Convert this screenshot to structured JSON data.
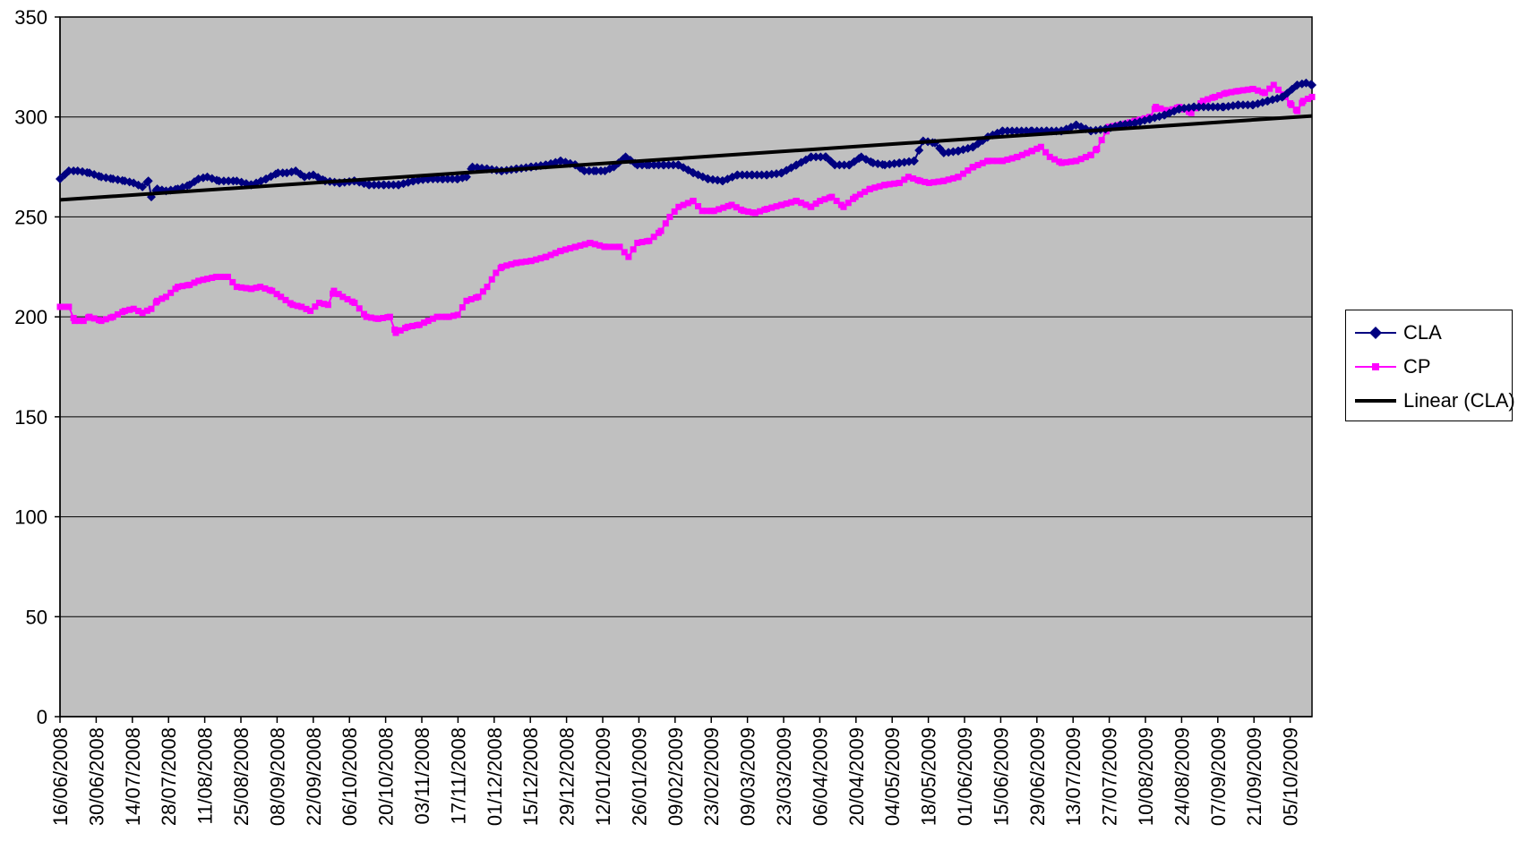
{
  "chart_data": {
    "type": "line",
    "title": "",
    "xlabel": "",
    "ylabel": "",
    "ylim": [
      0,
      350
    ],
    "yticks": [
      0,
      50,
      100,
      150,
      200,
      250,
      300,
      350
    ],
    "x_tick_labels": [
      "16/06/2008",
      "30/06/2008",
      "14/07/2008",
      "28/07/2008",
      "11/08/2008",
      "25/08/2008",
      "08/09/2008",
      "22/09/2008",
      "06/10/2008",
      "20/10/2008",
      "03/11/2008",
      "17/11/2008",
      "01/12/2008",
      "15/12/2008",
      "29/12/2008",
      "12/01/2009",
      "26/01/2009",
      "09/02/2009",
      "23/02/2009",
      "09/03/2009",
      "23/03/2009",
      "06/04/2009",
      "20/04/2009",
      "04/05/2009",
      "18/05/2009",
      "01/06/2009",
      "15/06/2009",
      "29/06/2009",
      "13/07/2009",
      "27/07/2009",
      "10/08/2009",
      "24/08/2009",
      "07/09/2009",
      "21/09/2009",
      "05/10/2009"
    ],
    "grid": true,
    "plot_background": "#C0C0C0",
    "legend_position": "right",
    "series": [
      {
        "name": "CLA",
        "color": "#000080",
        "marker": "diamond",
        "values": [
          [
            0,
            269
          ],
          [
            3,
            273
          ],
          [
            6,
            273
          ],
          [
            10,
            272
          ],
          [
            14,
            270
          ],
          [
            18,
            269
          ],
          [
            22,
            268
          ],
          [
            25,
            267
          ],
          [
            28,
            265
          ],
          [
            30,
            268
          ],
          [
            31,
            260
          ],
          [
            33,
            264
          ],
          [
            36,
            263
          ],
          [
            40,
            264
          ],
          [
            44,
            266
          ],
          [
            47,
            269
          ],
          [
            50,
            270
          ],
          [
            54,
            268
          ],
          [
            60,
            268
          ],
          [
            65,
            266
          ],
          [
            70,
            269
          ],
          [
            74,
            272
          ],
          [
            77,
            272
          ],
          [
            80,
            273
          ],
          [
            83,
            270
          ],
          [
            86,
            271
          ],
          [
            90,
            268
          ],
          [
            95,
            267
          ],
          [
            100,
            268
          ],
          [
            105,
            266
          ],
          [
            110,
            266
          ],
          [
            115,
            266
          ],
          [
            120,
            268
          ],
          [
            125,
            269
          ],
          [
            130,
            269
          ],
          [
            135,
            269
          ],
          [
            138,
            270
          ],
          [
            140,
            275
          ],
          [
            145,
            274
          ],
          [
            150,
            273
          ],
          [
            155,
            274
          ],
          [
            160,
            275
          ],
          [
            165,
            276
          ],
          [
            170,
            278
          ],
          [
            175,
            276
          ],
          [
            178,
            273
          ],
          [
            182,
            273
          ],
          [
            185,
            273
          ],
          [
            188,
            275
          ],
          [
            192,
            280
          ],
          [
            196,
            276
          ],
          [
            200,
            276
          ],
          [
            205,
            276
          ],
          [
            210,
            276
          ],
          [
            215,
            272
          ],
          [
            220,
            269
          ],
          [
            225,
            268
          ],
          [
            230,
            271
          ],
          [
            235,
            271
          ],
          [
            240,
            271
          ],
          [
            245,
            272
          ],
          [
            250,
            276
          ],
          [
            255,
            280
          ],
          [
            260,
            280
          ],
          [
            263,
            276
          ],
          [
            268,
            276
          ],
          [
            272,
            280
          ],
          [
            276,
            277
          ],
          [
            280,
            276
          ],
          [
            285,
            277
          ],
          [
            290,
            278
          ],
          [
            293,
            288
          ],
          [
            297,
            287
          ],
          [
            300,
            282
          ],
          [
            305,
            283
          ],
          [
            310,
            285
          ],
          [
            315,
            290
          ],
          [
            320,
            293
          ],
          [
            330,
            293
          ],
          [
            335,
            293
          ],
          [
            340,
            293
          ],
          [
            345,
            296
          ],
          [
            350,
            293
          ],
          [
            355,
            294
          ],
          [
            360,
            296
          ],
          [
            365,
            297
          ],
          [
            370,
            299
          ],
          [
            375,
            301
          ],
          [
            380,
            304
          ],
          [
            385,
            305
          ],
          [
            395,
            305
          ],
          [
            400,
            306
          ],
          [
            405,
            306
          ],
          [
            410,
            308
          ],
          [
            415,
            310
          ],
          [
            420,
            316
          ],
          [
            423,
            317
          ],
          [
            425,
            316
          ]
        ]
      },
      {
        "name": "CP",
        "color": "#FF00FF",
        "marker": "square",
        "values": [
          [
            0,
            205
          ],
          [
            3,
            205
          ],
          [
            5,
            198
          ],
          [
            8,
            198
          ],
          [
            10,
            200
          ],
          [
            14,
            198
          ],
          [
            18,
            200
          ],
          [
            22,
            203
          ],
          [
            25,
            204
          ],
          [
            28,
            202
          ],
          [
            31,
            204
          ],
          [
            33,
            208
          ],
          [
            36,
            210
          ],
          [
            40,
            215
          ],
          [
            44,
            216
          ],
          [
            47,
            218
          ],
          [
            50,
            219
          ],
          [
            53,
            220
          ],
          [
            57,
            220
          ],
          [
            60,
            215
          ],
          [
            65,
            214
          ],
          [
            68,
            215
          ],
          [
            72,
            213
          ],
          [
            75,
            210
          ],
          [
            79,
            206
          ],
          [
            82,
            205
          ],
          [
            85,
            203
          ],
          [
            88,
            207
          ],
          [
            91,
            206
          ],
          [
            93,
            213
          ],
          [
            96,
            210
          ],
          [
            100,
            207
          ],
          [
            104,
            200
          ],
          [
            108,
            199
          ],
          [
            112,
            200
          ],
          [
            114,
            192
          ],
          [
            118,
            195
          ],
          [
            122,
            196
          ],
          [
            125,
            198
          ],
          [
            128,
            200
          ],
          [
            132,
            200
          ],
          [
            135,
            201
          ],
          [
            138,
            208
          ],
          [
            142,
            210
          ],
          [
            145,
            215
          ],
          [
            148,
            222
          ],
          [
            150,
            225
          ],
          [
            155,
            227
          ],
          [
            160,
            228
          ],
          [
            165,
            230
          ],
          [
            170,
            233
          ],
          [
            175,
            235
          ],
          [
            180,
            237
          ],
          [
            185,
            235
          ],
          [
            190,
            235
          ],
          [
            193,
            230
          ],
          [
            196,
            237
          ],
          [
            200,
            238
          ],
          [
            204,
            243
          ],
          [
            207,
            250
          ],
          [
            210,
            255
          ],
          [
            215,
            258
          ],
          [
            218,
            253
          ],
          [
            222,
            253
          ],
          [
            228,
            256
          ],
          [
            232,
            253
          ],
          [
            236,
            252
          ],
          [
            240,
            254
          ],
          [
            245,
            256
          ],
          [
            250,
            258
          ],
          [
            255,
            255
          ],
          [
            258,
            258
          ],
          [
            262,
            260
          ],
          [
            266,
            255
          ],
          [
            270,
            260
          ],
          [
            275,
            264
          ],
          [
            280,
            266
          ],
          [
            285,
            267
          ],
          [
            288,
            270
          ],
          [
            292,
            268
          ],
          [
            295,
            267
          ],
          [
            300,
            268
          ],
          [
            305,
            270
          ],
          [
            310,
            275
          ],
          [
            315,
            278
          ],
          [
            320,
            278
          ],
          [
            325,
            280
          ],
          [
            330,
            283
          ],
          [
            333,
            285
          ],
          [
            336,
            280
          ],
          [
            340,
            277
          ],
          [
            345,
            278
          ],
          [
            350,
            281
          ],
          [
            352,
            284
          ],
          [
            356,
            295
          ],
          [
            360,
            296
          ],
          [
            365,
            298
          ],
          [
            370,
            300
          ],
          [
            372,
            305
          ],
          [
            376,
            303
          ],
          [
            380,
            305
          ],
          [
            384,
            302
          ],
          [
            388,
            308
          ],
          [
            392,
            310
          ],
          [
            396,
            312
          ],
          [
            400,
            313
          ],
          [
            405,
            314
          ],
          [
            409,
            312
          ],
          [
            412,
            316
          ],
          [
            416,
            310
          ],
          [
            418,
            306
          ],
          [
            420,
            303
          ],
          [
            422,
            308
          ],
          [
            425,
            310
          ]
        ]
      },
      {
        "name": "Linear (CLA)",
        "color": "#000000",
        "values": [
          [
            0,
            258.5
          ],
          [
            425,
            300.5
          ]
        ]
      }
    ]
  }
}
